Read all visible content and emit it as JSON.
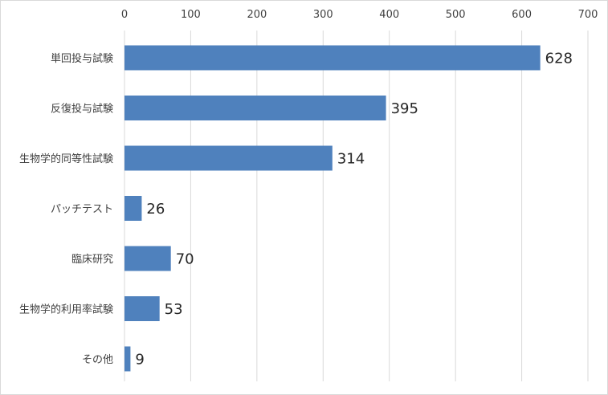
{
  "chart_data": {
    "type": "bar",
    "orientation": "horizontal",
    "categories": [
      "単回投与試験",
      "反復投与試験",
      "生物学的同等性試験",
      "パッチテスト",
      "臨床研究",
      "生物学的利用率試験",
      "その他"
    ],
    "values": [
      628,
      395,
      314,
      26,
      70,
      53,
      9
    ],
    "data_labels": [
      "628",
      "395",
      "314",
      "26",
      "70",
      "53",
      "9"
    ],
    "title": "",
    "xlabel": "",
    "ylabel": "",
    "xlim": [
      0,
      700
    ],
    "x_ticks": [
      0,
      100,
      200,
      300,
      400,
      500,
      600,
      700
    ],
    "x_tick_labels": [
      "0",
      "100",
      "200",
      "300",
      "400",
      "500",
      "600",
      "700"
    ],
    "x_axis_position": "top",
    "grid": true,
    "legend": "none",
    "colors": {
      "bar": "#4f81bd",
      "grid": "#d9d9d9",
      "text": "#404040",
      "data_label": "#262626"
    }
  }
}
